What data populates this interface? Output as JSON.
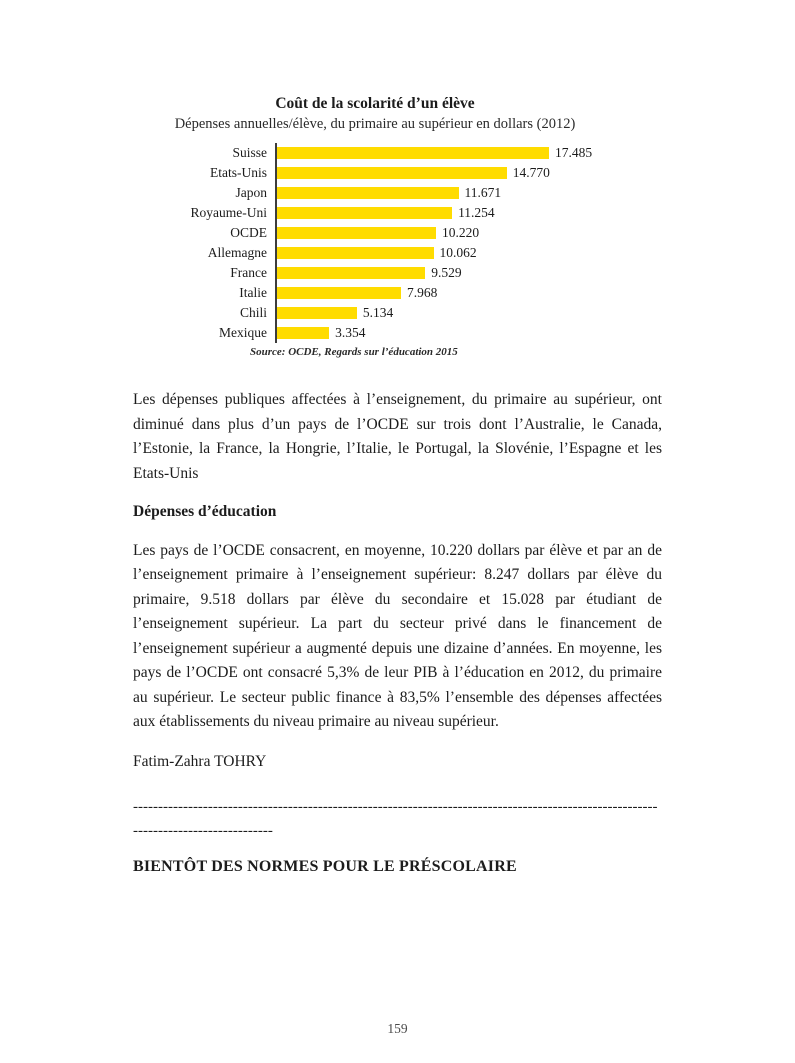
{
  "chart": {
    "title": "Coût de la scolarité d’un élève",
    "subtitle": "Dépenses annuelles/élève, du primaire au supérieur en dollars (2012)",
    "source": "Source: OCDE, Regards sur l’éducation 2015"
  },
  "chart_data": {
    "type": "bar",
    "orientation": "horizontal",
    "title": "Coût de la scolarité d’un élève",
    "subtitle": "Dépenses annuelles/élève, du primaire au supérieur en dollars (2012)",
    "source": "Source: OCDE, Regards sur l’éducation 2015",
    "categories": [
      "Suisse",
      "Etats-Unis",
      "Japon",
      "Royaume-Uni",
      "OCDE",
      "Allemagne",
      "France",
      "Italie",
      "Chili",
      "Mexique"
    ],
    "values": [
      17485,
      14770,
      11671,
      11254,
      10220,
      10062,
      9529,
      7968,
      5134,
      3354
    ],
    "value_labels": [
      "17.485",
      "14.770",
      "11.671",
      "11.254",
      "10.220",
      "10.062",
      "9.529",
      "7.968",
      "5.134",
      "3.354"
    ],
    "xlim": [
      0,
      17485
    ],
    "bar_color": "#FFDC00",
    "axis_color": "#3c3c3c",
    "grid": false,
    "legend": false
  },
  "article": {
    "paragraph_1": "Les dépenses publiques affectées à l’enseignement, du primaire au supérieur, ont diminué dans plus d’un pays de l’OCDE sur trois dont l’Australie, le Canada, l’Estonie, la France, la Hongrie, l’Italie, le Portugal, la Slovénie, l’Espagne et les Etats-Unis",
    "heading_1": "Dépenses d’éducation",
    "paragraph_2": "Les pays de l’OCDE consacrent, en moyenne, 10.220 dollars par élève et par an de l’enseignement primaire à l’enseignement supérieur: 8.247 dollars par élève du primaire, 9.518 dollars par élève du secondaire et 15.028 par étudiant de l’enseignement supérieur. La part du secteur privé dans le financement de l’enseignement supérieur a augmenté depuis une dizaine d’années. En moyenne, les pays de l’OCDE ont consacré 5,3% de leur PIB à l’éducation en 2012, du primaire au supérieur. Le secteur public finance à 83,5% l’ensemble des dépenses affectées aux établissements du niveau primaire au niveau supérieur.",
    "byline": "Fatim-Zahra TOHRY",
    "separator_line_1": "---------------------------------------------------------------------------------------------------------",
    "separator_line_2": "----------------------------",
    "heading_2": "BIENTÔT DES NORMES POUR LE PRÉSCOLAIRE"
  },
  "page": {
    "number": "159"
  }
}
